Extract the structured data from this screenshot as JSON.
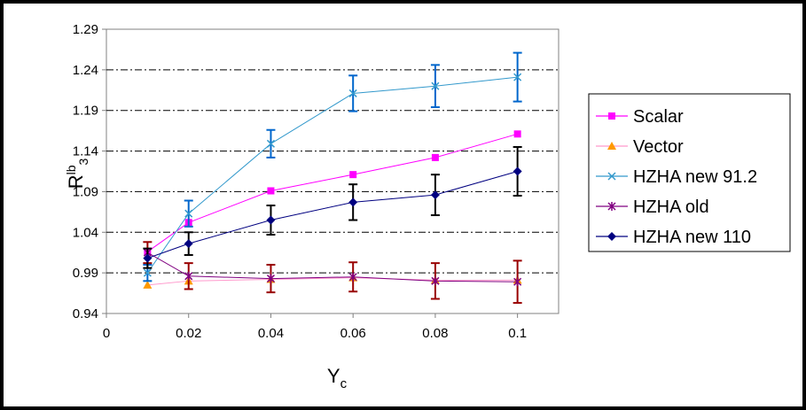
{
  "chart_data": {
    "type": "line",
    "title": "",
    "xlabel": "Yc",
    "ylabel": "Rlb3",
    "xlim": [
      0,
      0.11
    ],
    "ylim": [
      0.94,
      1.29
    ],
    "x_ticks": [
      0,
      0.02,
      0.04,
      0.06,
      0.08,
      0.1
    ],
    "y_ticks": [
      0.94,
      0.99,
      1.04,
      1.09,
      1.14,
      1.19,
      1.24,
      1.29
    ],
    "x_tick_labels": [
      "0",
      "0.02",
      "0.04",
      "0.06",
      "0.08",
      "0.1"
    ],
    "y_tick_labels": [
      "0.94",
      "0.99",
      "1.04",
      "1.09",
      "1.14",
      "1.19",
      "1.24",
      "1.29"
    ],
    "grid": "horizontal dash-dot",
    "legend_position": "right",
    "x": [
      0.01,
      0.02,
      0.04,
      0.06,
      0.08,
      0.1
    ],
    "series": [
      {
        "name": "Scalar",
        "marker": "square",
        "color": "#FF00FF",
        "values": [
          1.016,
          1.052,
          1.091,
          1.111,
          1.132,
          1.161
        ],
        "error": null
      },
      {
        "name": "Vector",
        "marker": "triangle",
        "color": "#FF9900",
        "line_color": "#FF99CC",
        "values": [
          0.975,
          0.98,
          0.982,
          0.984,
          0.981,
          0.981
        ],
        "error": null
      },
      {
        "name": "HZHA new 91.2",
        "marker": "x",
        "color": "#3399CC",
        "error_color": "#0066CC",
        "values": [
          0.99,
          1.063,
          1.149,
          1.211,
          1.22,
          1.231
        ],
        "error": [
          0.01,
          0.016,
          0.017,
          0.022,
          0.026,
          0.03
        ]
      },
      {
        "name": "HZHA old",
        "marker": "star",
        "color": "#800080",
        "error_color": "#990000",
        "values": [
          1.015,
          0.986,
          0.983,
          0.985,
          0.98,
          0.979
        ],
        "error": [
          0.013,
          0.016,
          0.017,
          0.018,
          0.022,
          0.026
        ]
      },
      {
        "name": "HZHA new 110",
        "marker": "diamond",
        "color": "#000080",
        "error_color": "#000000",
        "values": [
          1.008,
          1.026,
          1.055,
          1.077,
          1.086,
          1.115
        ],
        "error": [
          0.012,
          0.014,
          0.018,
          0.022,
          0.025,
          0.03
        ]
      }
    ]
  }
}
